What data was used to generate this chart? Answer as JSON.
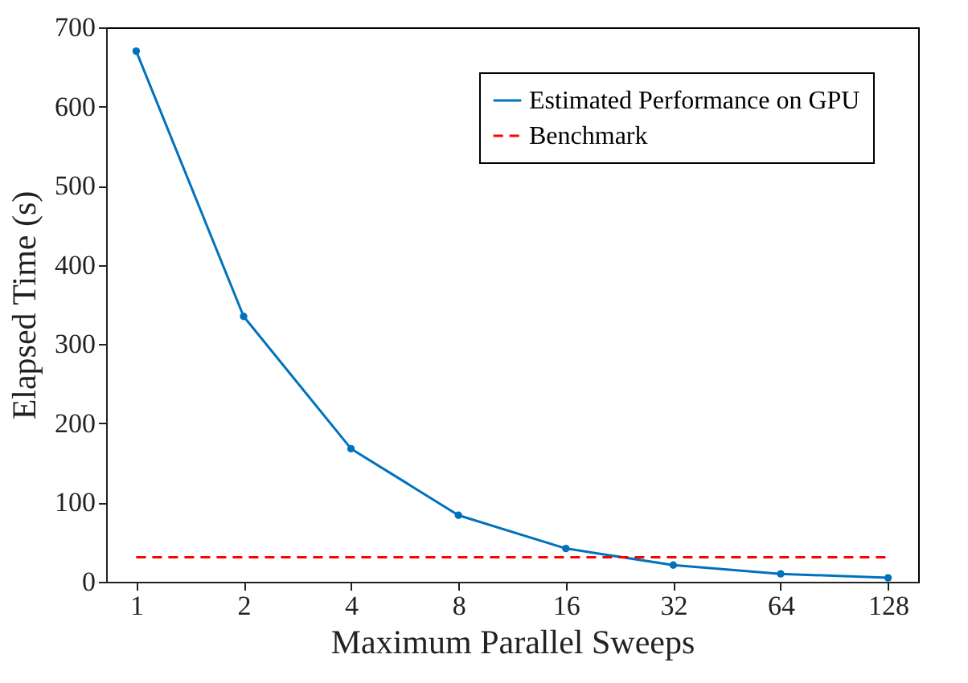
{
  "chart_data": {
    "type": "line",
    "xlabel": "Maximum Parallel Sweeps",
    "ylabel": "Elapsed Time (s)",
    "categories": [
      "1",
      "2",
      "4",
      "8",
      "16",
      "32",
      "64",
      "128"
    ],
    "series": [
      {
        "name": "Estimated Performance on GPU",
        "color": "#0072bd",
        "marker": "circle",
        "line_style": "solid",
        "values": [
          670,
          335,
          168,
          84,
          42,
          21,
          10,
          5
        ]
      },
      {
        "name": "Benchmark",
        "color": "#ff0000",
        "marker": "none",
        "line_style": "dashed",
        "values": [
          31,
          31,
          31,
          31,
          31,
          31,
          31,
          31
        ]
      }
    ],
    "ylim": [
      0,
      700
    ],
    "yticks": [
      0,
      100,
      200,
      300,
      400,
      500,
      600,
      700
    ],
    "grid": false,
    "legend": "top right"
  }
}
